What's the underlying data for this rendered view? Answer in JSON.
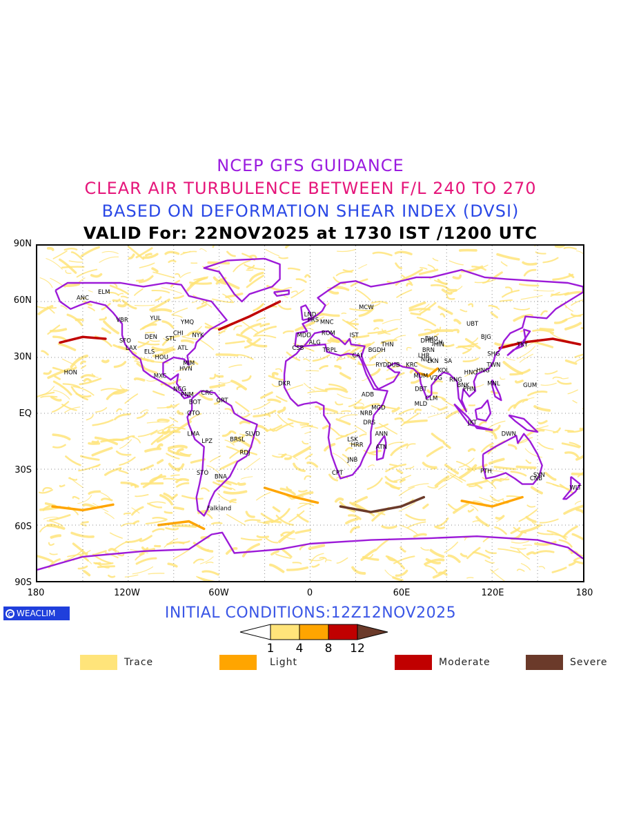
{
  "titles": {
    "line1": "NCEP GFS GUIDANCE",
    "line2": "CLEAR AIR TURBULENCE BETWEEN F/L 240 TO 270",
    "line3": "BASED ON DEFORMATION SHEAR INDEX (DVSI)",
    "line4": "VALID For: 22NOV2025 at 1730 IST /1200 UTC"
  },
  "axes": {
    "lat_labels": [
      "90N",
      "60N",
      "30N",
      "EQ",
      "30S",
      "60S",
      "90S"
    ],
    "lon_labels": [
      "180",
      "120W",
      "60W",
      "0",
      "60E",
      "120E",
      "180"
    ]
  },
  "badge": {
    "text": "WEACLIM",
    "icon": "copyright-circle-icon"
  },
  "initial_conditions": "INITIAL CONDITIONS:12Z12NOV2025",
  "colorbar": {
    "ticks": [
      "1",
      "4",
      "8",
      "12"
    ],
    "colors": [
      "#ffffff",
      "#ffe47a",
      "#ffa500",
      "#c00000",
      "#6b3a2a"
    ]
  },
  "legend": [
    {
      "label": "Trace",
      "color": "#ffe47a"
    },
    {
      "label": "Light",
      "color": "#ffa500"
    },
    {
      "label": "Moderate",
      "color": "#c00000"
    },
    {
      "label": "Severe",
      "color": "#6b3a2a"
    }
  ],
  "colors": {
    "coastline": "#9c1ad8",
    "gridline": "#8a8a8a"
  },
  "stations": [
    {
      "id": "ANC",
      "lon": -150,
      "lat": 61
    },
    {
      "id": "ELM",
      "lon": -136,
      "lat": 64
    },
    {
      "id": "VBR",
      "lon": -124,
      "lat": 49
    },
    {
      "id": "YUL",
      "lon": -102,
      "lat": 50
    },
    {
      "id": "YMQ",
      "lon": -81,
      "lat": 48
    },
    {
      "id": "CHI",
      "lon": -87,
      "lat": 42
    },
    {
      "id": "DEN",
      "lon": -105,
      "lat": 40
    },
    {
      "id": "SFO",
      "lon": -122,
      "lat": 38
    },
    {
      "id": "LAX",
      "lon": -118,
      "lat": 34
    },
    {
      "id": "STL",
      "lon": -92,
      "lat": 39
    },
    {
      "id": "NYK",
      "lon": -74,
      "lat": 41
    },
    {
      "id": "ATL",
      "lon": -84,
      "lat": 34
    },
    {
      "id": "ELS",
      "lon": -106,
      "lat": 32
    },
    {
      "id": "HOU",
      "lon": -98,
      "lat": 29
    },
    {
      "id": "MIM",
      "lon": -80,
      "lat": 26
    },
    {
      "id": "HVN",
      "lon": -82,
      "lat": 23
    },
    {
      "id": "HON",
      "lon": -158,
      "lat": 21
    },
    {
      "id": "MXC",
      "lon": -99,
      "lat": 19
    },
    {
      "id": "NCG",
      "lon": -86,
      "lat": 12
    },
    {
      "id": "CRC",
      "lon": -68,
      "lat": 10
    },
    {
      "id": "PNM",
      "lon": -81,
      "lat": 9
    },
    {
      "id": "BOT",
      "lon": -76,
      "lat": 5
    },
    {
      "id": "GRT",
      "lon": -58,
      "lat": 6
    },
    {
      "id": "QTO",
      "lon": -77,
      "lat": -1
    },
    {
      "id": "LMA",
      "lon": -77,
      "lat": -12
    },
    {
      "id": "LPZ",
      "lon": -68,
      "lat": -16
    },
    {
      "id": "BRSL",
      "lon": -48,
      "lat": -15
    },
    {
      "id": "SLVD",
      "lon": -38,
      "lat": -12
    },
    {
      "id": "RDJ",
      "lon": -43,
      "lat": -22
    },
    {
      "id": "STO",
      "lon": -71,
      "lat": -33
    },
    {
      "id": "BNA",
      "lon": -59,
      "lat": -35
    },
    {
      "id": "Falkland",
      "lon": -60,
      "lat": -52
    },
    {
      "id": "LND",
      "lon": 0,
      "lat": 52
    },
    {
      "id": "PRS",
      "lon": 2,
      "lat": 49
    },
    {
      "id": "MNC",
      "lon": 11,
      "lat": 48
    },
    {
      "id": "MDD",
      "lon": -4,
      "lat": 41
    },
    {
      "id": "ALG",
      "lon": 3,
      "lat": 37
    },
    {
      "id": "ROM",
      "lon": 12,
      "lat": 42
    },
    {
      "id": "IST",
      "lon": 29,
      "lat": 41
    },
    {
      "id": "MCW",
      "lon": 37,
      "lat": 56
    },
    {
      "id": "CSB",
      "lon": -8,
      "lat": 34
    },
    {
      "id": "TRPL",
      "lon": 13,
      "lat": 33
    },
    {
      "id": "CAI",
      "lon": 31,
      "lat": 30
    },
    {
      "id": "BGDH",
      "lon": 44,
      "lat": 33
    },
    {
      "id": "THN",
      "lon": 51,
      "lat": 36
    },
    {
      "id": "RYD",
      "lon": 47,
      "lat": 25
    },
    {
      "id": "DUB",
      "lon": 55,
      "lat": 25
    },
    {
      "id": "KRC",
      "lon": 67,
      "lat": 25
    },
    {
      "id": "DKR",
      "lon": -17,
      "lat": 15
    },
    {
      "id": "ADB",
      "lon": 38,
      "lat": 9
    },
    {
      "id": "MGD",
      "lon": 45,
      "lat": 2
    },
    {
      "id": "NRB",
      "lon": 37,
      "lat": -1
    },
    {
      "id": "DRS",
      "lon": 39,
      "lat": -6
    },
    {
      "id": "ANN",
      "lon": 47,
      "lat": -12
    },
    {
      "id": "LSK",
      "lon": 28,
      "lat": -15
    },
    {
      "id": "HRR",
      "lon": 31,
      "lat": -18
    },
    {
      "id": "ATN",
      "lon": 47,
      "lat": -19
    },
    {
      "id": "JNB",
      "lon": 28,
      "lat": -26
    },
    {
      "id": "CPT",
      "lon": 18,
      "lat": -33
    },
    {
      "id": "DHE",
      "lon": 77,
      "lat": 38
    },
    {
      "id": "BHO",
      "lon": 80,
      "lat": 39
    },
    {
      "id": "JGH",
      "lon": 84,
      "lat": 37
    },
    {
      "id": "HIN",
      "lon": 85,
      "lat": 36
    },
    {
      "id": "BRN",
      "lon": 78,
      "lat": 33
    },
    {
      "id": "LHR",
      "lon": 75,
      "lat": 30
    },
    {
      "id": "NDL",
      "lon": 77,
      "lat": 28
    },
    {
      "id": "LKN",
      "lon": 81,
      "lat": 27
    },
    {
      "id": "SA",
      "lon": 91,
      "lat": 27
    },
    {
      "id": "MUM",
      "lon": 73,
      "lat": 19
    },
    {
      "id": "KOL",
      "lon": 88,
      "lat": 22
    },
    {
      "id": "VZG",
      "lon": 83,
      "lat": 18
    },
    {
      "id": "DBT",
      "lon": 73,
      "lat": 12
    },
    {
      "id": "CLM",
      "lon": 80,
      "lat": 7
    },
    {
      "id": "MLD",
      "lon": 73,
      "lat": 4
    },
    {
      "id": "UBT",
      "lon": 107,
      "lat": 47
    },
    {
      "id": "BJG",
      "lon": 116,
      "lat": 40
    },
    {
      "id": "SHG",
      "lon": 121,
      "lat": 31
    },
    {
      "id": "TKY",
      "lon": 140,
      "lat": 36
    },
    {
      "id": "TWN",
      "lon": 121,
      "lat": 25
    },
    {
      "id": "HNG",
      "lon": 114,
      "lat": 22
    },
    {
      "id": "HNO",
      "lon": 106,
      "lat": 21
    },
    {
      "id": "RNG",
      "lon": 96,
      "lat": 17
    },
    {
      "id": "BNK",
      "lon": 101,
      "lat": 14
    },
    {
      "id": "PHN",
      "lon": 105,
      "lat": 12
    },
    {
      "id": "MNL",
      "lon": 121,
      "lat": 15
    },
    {
      "id": "GUM",
      "lon": 145,
      "lat": 14
    },
    {
      "id": "JKT",
      "lon": 107,
      "lat": -6
    },
    {
      "id": "DWN",
      "lon": 131,
      "lat": -12
    },
    {
      "id": "PTH",
      "lon": 116,
      "lat": -32
    },
    {
      "id": "SYN",
      "lon": 151,
      "lat": -34
    },
    {
      "id": "CNB",
      "lon": 149,
      "lat": -36
    },
    {
      "id": "WLT",
      "lon": 175,
      "lat": -41
    }
  ]
}
